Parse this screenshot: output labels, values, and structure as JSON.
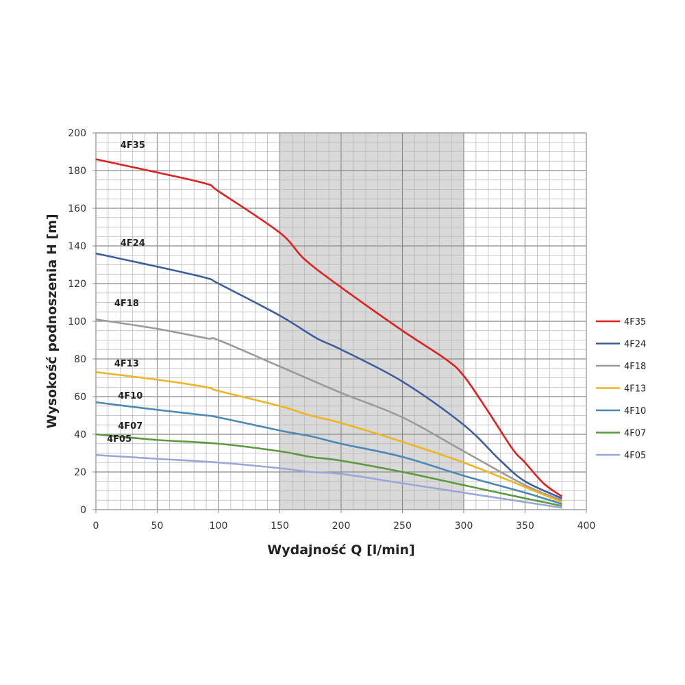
{
  "chart_data": {
    "type": "line",
    "title": "",
    "xlabel": "Wydajność Q [l/min]",
    "ylabel": "Wysokość podnoszenia H [m]",
    "xlim": [
      0,
      400
    ],
    "ylim": [
      0,
      200
    ],
    "xticks": [
      0,
      50,
      100,
      150,
      200,
      250,
      300,
      350,
      400
    ],
    "yticks": [
      0,
      20,
      40,
      60,
      80,
      100,
      120,
      140,
      160,
      180,
      200
    ],
    "x_minor_step": 10,
    "y_minor_step": 5,
    "grid": true,
    "legend_placement": "right",
    "shaded_x_range": [
      150,
      300
    ],
    "shaded_color": "#d9d9d9",
    "series": [
      {
        "name": "4F35",
        "color": "#e0201e",
        "label_at": [
          20,
          192
        ],
        "points": [
          [
            0,
            186
          ],
          [
            50,
            179
          ],
          [
            90,
            173
          ],
          [
            100,
            169
          ],
          [
            150,
            147
          ],
          [
            170,
            133
          ],
          [
            200,
            118
          ],
          [
            250,
            95
          ],
          [
            285,
            80
          ],
          [
            300,
            71
          ],
          [
            320,
            52
          ],
          [
            340,
            32
          ],
          [
            350,
            25
          ],
          [
            365,
            14
          ],
          [
            380,
            7
          ]
        ]
      },
      {
        "name": "4F24",
        "color": "#3d5e9e",
        "label_at": [
          20,
          140
        ],
        "points": [
          [
            0,
            136
          ],
          [
            50,
            129
          ],
          [
            90,
            123
          ],
          [
            100,
            120
          ],
          [
            150,
            103
          ],
          [
            180,
            91
          ],
          [
            200,
            85
          ],
          [
            250,
            68
          ],
          [
            300,
            45
          ],
          [
            330,
            26
          ],
          [
            350,
            15
          ],
          [
            380,
            6
          ]
        ]
      },
      {
        "name": "4F18",
        "color": "#9a9a9a",
        "label_at": [
          15,
          108
        ],
        "points": [
          [
            0,
            101
          ],
          [
            50,
            96
          ],
          [
            90,
            91
          ],
          [
            100,
            90
          ],
          [
            150,
            76
          ],
          [
            200,
            62
          ],
          [
            250,
            49
          ],
          [
            300,
            31
          ],
          [
            350,
            13
          ],
          [
            380,
            5
          ]
        ]
      },
      {
        "name": "4F13",
        "color": "#f0b41e",
        "label_at": [
          15,
          76
        ],
        "points": [
          [
            0,
            73
          ],
          [
            50,
            69
          ],
          [
            90,
            65
          ],
          [
            100,
            63
          ],
          [
            150,
            55
          ],
          [
            175,
            50
          ],
          [
            200,
            46
          ],
          [
            250,
            36
          ],
          [
            300,
            25
          ],
          [
            350,
            12
          ],
          [
            380,
            4
          ]
        ]
      },
      {
        "name": "4F10",
        "color": "#4a88b6",
        "label_at": [
          18,
          59
        ],
        "points": [
          [
            0,
            57
          ],
          [
            50,
            53
          ],
          [
            90,
            50
          ],
          [
            100,
            49
          ],
          [
            150,
            42
          ],
          [
            175,
            39
          ],
          [
            200,
            35
          ],
          [
            250,
            28
          ],
          [
            300,
            18
          ],
          [
            350,
            9
          ],
          [
            380,
            3
          ]
        ]
      },
      {
        "name": "4F07",
        "color": "#5b9a3c",
        "label_at": [
          18,
          43
        ],
        "points": [
          [
            0,
            40
          ],
          [
            50,
            37
          ],
          [
            100,
            35
          ],
          [
            150,
            31
          ],
          [
            175,
            28
          ],
          [
            200,
            26
          ],
          [
            250,
            20
          ],
          [
            300,
            13
          ],
          [
            350,
            6
          ],
          [
            380,
            2
          ]
        ]
      },
      {
        "name": "4F05",
        "color": "#9aa6d8",
        "label_at": [
          9,
          36
        ],
        "points": [
          [
            0,
            29
          ],
          [
            50,
            27
          ],
          [
            100,
            25
          ],
          [
            150,
            22
          ],
          [
            175,
            20
          ],
          [
            200,
            19
          ],
          [
            250,
            14
          ],
          [
            300,
            9
          ],
          [
            350,
            4
          ],
          [
            380,
            1
          ]
        ]
      }
    ]
  }
}
